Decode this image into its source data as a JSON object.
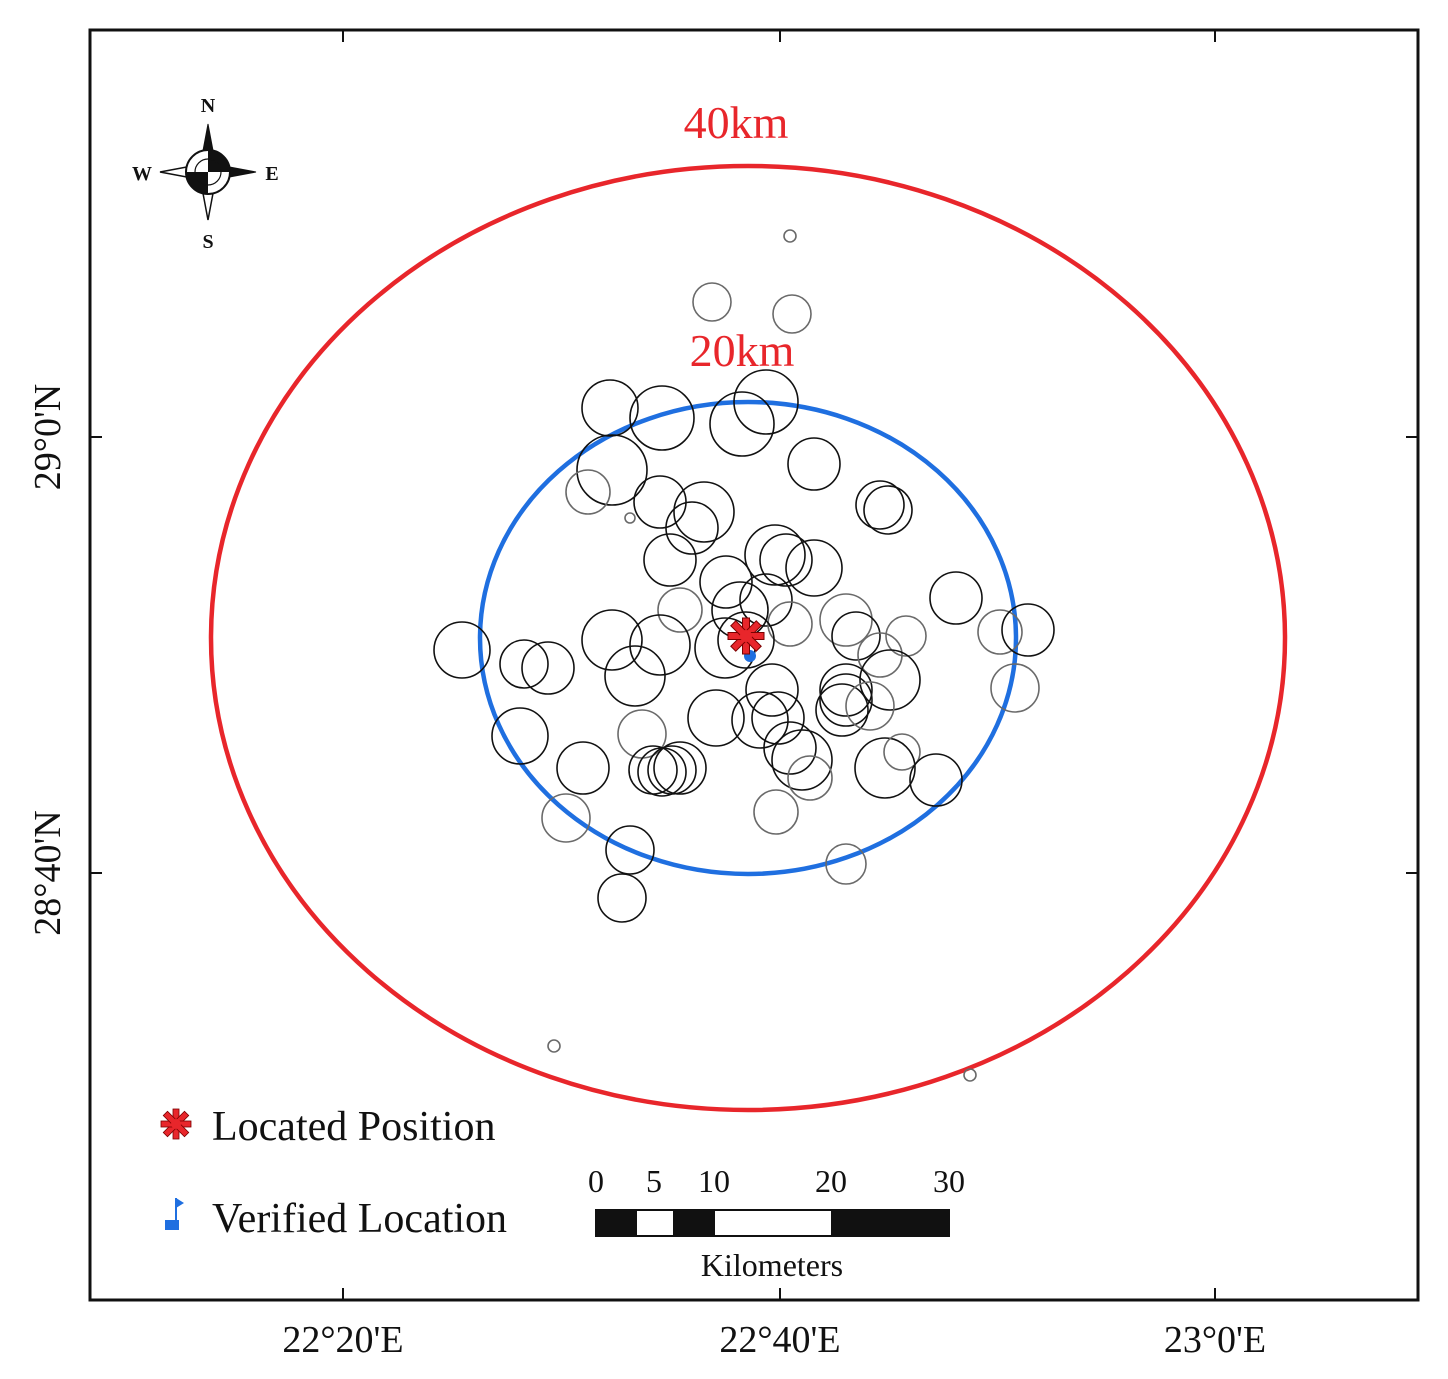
{
  "axes": {
    "x_ticks": [
      "22°20'E",
      "22°40'E",
      "23°0'E"
    ],
    "y_ticks": [
      "29°0'N",
      "28°40'N"
    ]
  },
  "rings": {
    "outer_label": "40km",
    "inner_label": "20km",
    "outer_color": "#e8262b",
    "inner_color": "#1f6fe0"
  },
  "compass": {
    "n": "N",
    "s": "S",
    "e": "E",
    "w": "W"
  },
  "legend": {
    "located_label": "Located Position",
    "verified_label": "Verified Location",
    "located_color": "#e8262b",
    "verified_color": "#1f6fe0"
  },
  "scale_bar": {
    "unit_label": "Kilometers",
    "ticks": [
      "0",
      "5",
      "10",
      "20",
      "30"
    ]
  }
}
